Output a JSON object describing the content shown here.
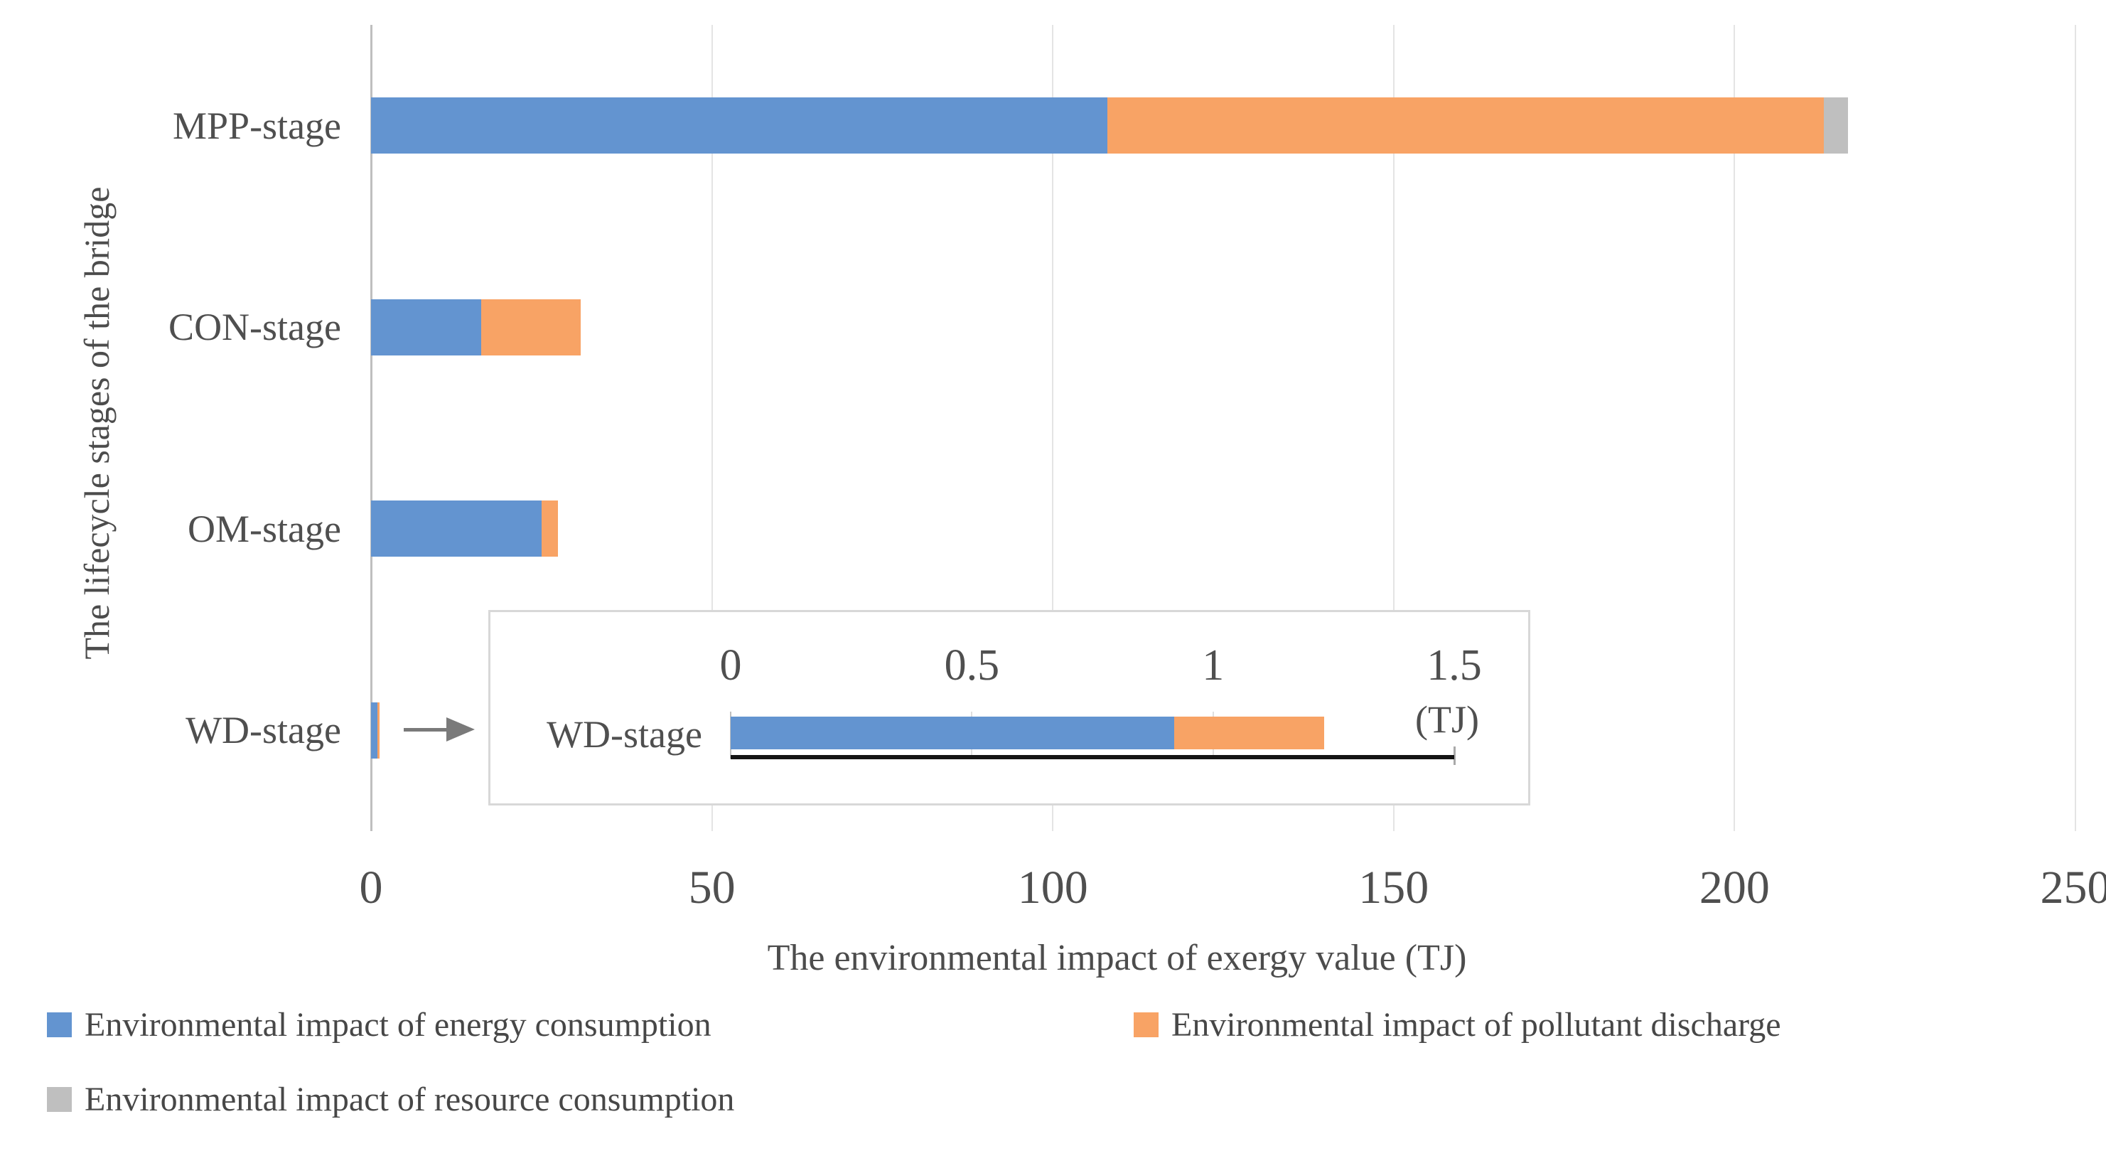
{
  "chart_data": {
    "type": "bar",
    "orientation": "horizontal",
    "xlabel": "The environmental impact of exergy value (TJ)",
    "ylabel": "The lifecycle stages of the bridge",
    "categories": [
      "MPP-stage",
      "CON-stage",
      "OM-stage",
      "WD-stage"
    ],
    "series": [
      {
        "name": "Environmental impact of energy consumption",
        "color": "#6394d0",
        "values": [
          108.0,
          16.2,
          25.0,
          0.92
        ]
      },
      {
        "name": "Environmental impact of pollutant discharge",
        "color": "#f8a365",
        "values": [
          105.1,
          14.6,
          2.4,
          0.31
        ]
      },
      {
        "name": "Environmental impact of resource consumption",
        "color": "#bfbfbf",
        "values": [
          3.5,
          0,
          0,
          0
        ]
      }
    ],
    "xlim": [
      0,
      250
    ],
    "xticks": [
      0,
      50,
      100,
      150,
      200,
      250
    ],
    "grid": "vertical",
    "legend_position": "bottom",
    "inset": {
      "type": "bar",
      "orientation": "horizontal",
      "categories": [
        "WD-stage"
      ],
      "series": [
        {
          "name": "Environmental impact of energy consumption",
          "values": [
            0.92
          ]
        },
        {
          "name": "Environmental impact of pollutant discharge",
          "values": [
            0.31
          ]
        }
      ],
      "xlim": [
        0,
        1.5
      ],
      "xticks": [
        0,
        0.5,
        1,
        1.5
      ],
      "unit_label": "(TJ)"
    }
  },
  "colors": {
    "gridline": "#e4e4e4",
    "axis_line": "#bfbfbf",
    "arrow": "#7a7a7a",
    "inset_baseline": "#141414",
    "text": "#4c4c4c"
  }
}
